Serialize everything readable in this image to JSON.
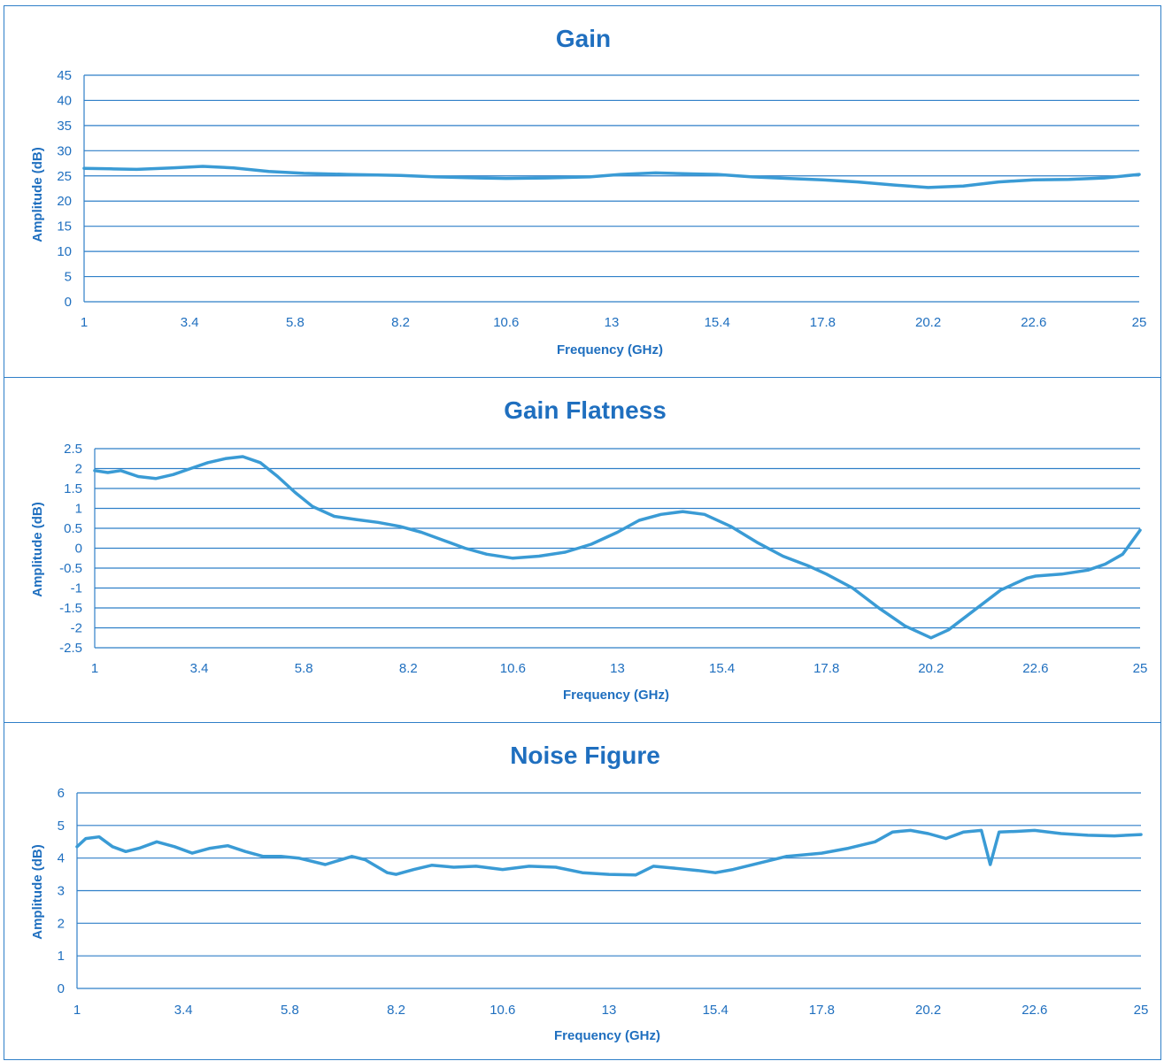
{
  "chart_data": [
    {
      "type": "line",
      "title": "Gain",
      "xlabel": "Frequency (GHz)",
      "ylabel": "Amplitude (dB)",
      "xlim": [
        1,
        25
      ],
      "ylim": [
        0,
        45
      ],
      "x_ticks": [
        "1",
        "3.4",
        "5.8",
        "8.2",
        "10.6",
        "13",
        "15.4",
        "17.8",
        "20.2",
        "22.6",
        "25"
      ],
      "y_ticks": [
        "0",
        "5",
        "10",
        "15",
        "20",
        "25",
        "30",
        "35",
        "40",
        "45"
      ],
      "grid": true,
      "series": [
        {
          "x": [
            1,
            1.6,
            2.2,
            3.0,
            3.7,
            4.4,
            5.2,
            6.0,
            7.0,
            8.2,
            9.0,
            10.0,
            10.6,
            11.5,
            12.5,
            13.2,
            14.0,
            14.8,
            15.4,
            16.2,
            17.0,
            17.8,
            18.6,
            19.4,
            20.2,
            21.0,
            21.8,
            22.6,
            23.4,
            24.2,
            25
          ],
          "y": [
            26.5,
            26.4,
            26.3,
            26.6,
            26.9,
            26.6,
            25.9,
            25.5,
            25.3,
            25.1,
            24.8,
            24.6,
            24.5,
            24.6,
            24.8,
            25.3,
            25.6,
            25.4,
            25.3,
            24.8,
            24.5,
            24.2,
            23.8,
            23.2,
            22.7,
            23.0,
            23.8,
            24.2,
            24.3,
            24.6,
            25.3
          ]
        }
      ]
    },
    {
      "type": "line",
      "title": "Gain Flatness",
      "xlabel": "Frequency (GHz)",
      "ylabel": "Amplitude (dB)",
      "xlim": [
        1,
        25
      ],
      "ylim": [
        -2.5,
        2.5
      ],
      "x_ticks": [
        "1",
        "3.4",
        "5.8",
        "8.2",
        "10.6",
        "13",
        "15.4",
        "17.8",
        "20.2",
        "22.6",
        "25"
      ],
      "y_ticks": [
        "-2.5",
        "-2",
        "-1.5",
        "-1",
        "-0.5",
        "0",
        "0.5",
        "1",
        "1.5",
        "2",
        "2.5"
      ],
      "grid": true,
      "series": [
        {
          "x": [
            1,
            1.3,
            1.6,
            2.0,
            2.4,
            2.8,
            3.2,
            3.6,
            4.0,
            4.4,
            4.8,
            5.2,
            5.6,
            6.0,
            6.5,
            7.0,
            7.5,
            8.0,
            8.5,
            9.0,
            9.5,
            10.0,
            10.6,
            11.2,
            11.8,
            12.4,
            13.0,
            13.5,
            14.0,
            14.5,
            15.0,
            15.6,
            16.2,
            16.8,
            17.4,
            17.8,
            18.4,
            19.0,
            19.6,
            20.2,
            20.6,
            21.2,
            21.8,
            22.4,
            22.6,
            23.2,
            23.8,
            24.2,
            24.6,
            25
          ],
          "y": [
            1.95,
            1.9,
            1.95,
            1.8,
            1.75,
            1.85,
            2.0,
            2.15,
            2.25,
            2.3,
            2.15,
            1.8,
            1.4,
            1.05,
            0.8,
            0.72,
            0.65,
            0.55,
            0.4,
            0.2,
            0.0,
            -0.15,
            -0.25,
            -0.2,
            -0.1,
            0.1,
            0.4,
            0.7,
            0.85,
            0.92,
            0.85,
            0.55,
            0.15,
            -0.2,
            -0.45,
            -0.65,
            -1.0,
            -1.5,
            -1.95,
            -2.25,
            -2.05,
            -1.55,
            -1.05,
            -0.75,
            -0.7,
            -0.65,
            -0.55,
            -0.4,
            -0.15,
            0.45
          ]
        }
      ]
    },
    {
      "type": "line",
      "title": "Noise Figure",
      "xlabel": "Frequency (GHz)",
      "ylabel": "Amplitude (dB)",
      "xlim": [
        1,
        25
      ],
      "ylim": [
        0,
        6
      ],
      "x_ticks": [
        "1",
        "3.4",
        "5.8",
        "8.2",
        "10.6",
        "13",
        "15.4",
        "17.8",
        "20.2",
        "22.6",
        "25"
      ],
      "y_ticks": [
        "0",
        "1",
        "2",
        "3",
        "4",
        "5",
        "6"
      ],
      "grid": true,
      "series": [
        {
          "x": [
            1,
            1.2,
            1.5,
            1.8,
            2.1,
            2.4,
            2.8,
            3.2,
            3.6,
            4.0,
            4.4,
            4.8,
            5.2,
            5.6,
            6.0,
            6.6,
            7.2,
            7.5,
            8.0,
            8.2,
            8.6,
            9.0,
            9.5,
            10.0,
            10.6,
            11.2,
            11.8,
            12.4,
            13.0,
            13.6,
            14.0,
            14.4,
            15.0,
            15.4,
            15.8,
            16.4,
            17.0,
            17.4,
            17.8,
            18.4,
            19.0,
            19.4,
            19.8,
            20.2,
            20.6,
            21.0,
            21.4,
            21.6,
            21.8,
            22.2,
            22.6,
            23.2,
            23.8,
            24.4,
            25
          ],
          "y": [
            4.35,
            4.6,
            4.65,
            4.35,
            4.2,
            4.3,
            4.5,
            4.35,
            4.15,
            4.3,
            4.38,
            4.2,
            4.05,
            4.05,
            4.0,
            3.8,
            4.05,
            3.95,
            3.55,
            3.5,
            3.65,
            3.78,
            3.72,
            3.75,
            3.65,
            3.75,
            3.72,
            3.55,
            3.5,
            3.48,
            3.75,
            3.7,
            3.62,
            3.55,
            3.65,
            3.85,
            4.05,
            4.1,
            4.15,
            4.3,
            4.5,
            4.8,
            4.85,
            4.75,
            4.6,
            4.8,
            4.85,
            3.8,
            4.8,
            4.82,
            4.85,
            4.75,
            4.7,
            4.68,
            4.72
          ]
        }
      ]
    }
  ]
}
